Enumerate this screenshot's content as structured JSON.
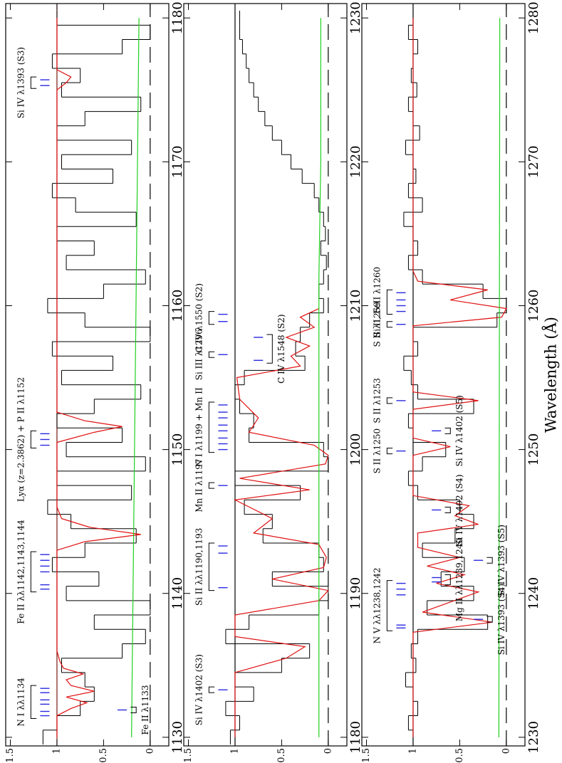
{
  "chart_data": [
    {
      "type": "line",
      "xlim": [
        1129.4,
        1181
      ],
      "xticks": [
        1130,
        1140,
        1150,
        1160,
        1170,
        1180
      ],
      "ylim": [
        -0.2,
        1.55
      ],
      "yticks": [
        0,
        0.5,
        1,
        1.5
      ],
      "reference_lines": [
        {
          "value": 1,
          "color": "#7a1a10"
        },
        {
          "value": 0,
          "color": "#000000",
          "dashed": true
        }
      ],
      "annotation_color": "#2a2ae0",
      "series": [
        {
          "color": "#000000",
          "step": true,
          "x": [
            1130,
            1131,
            1132,
            1133,
            1134,
            1135,
            1136,
            1137,
            1138,
            1139,
            1140,
            1141,
            1142,
            1143,
            1144,
            1145,
            1146,
            1147,
            1148,
            1149,
            1150,
            1151,
            1152,
            1153,
            1154,
            1155,
            1156,
            1157,
            1158,
            1159,
            1160,
            1161,
            1162,
            1163,
            1164,
            1165,
            1166,
            1167,
            1168,
            1169,
            1170,
            1171,
            1172,
            1173,
            1174,
            1175,
            1176,
            1177,
            1178,
            1179,
            1180
          ],
          "values": [
            1.15,
            1.0,
            0.75,
            0.6,
            0.7,
            0.95,
            0.3,
            0.05,
            0.6,
            0.0,
            0.9,
            0.55,
            1.05,
            0.7,
            0.15,
            0.85,
            1.1,
            0.2,
            1.0,
            0.05,
            0.9,
            0.3,
            1.0,
            0.6,
            0.1,
            0.95,
            0.4,
            1.05,
            0.0,
            0.7,
            1.1,
            0.5,
            0.05,
            0.9,
            0.6,
            1.0,
            0.15,
            0.8,
            1.05,
            0.4,
            0.95,
            0.2,
            1.0,
            0.7,
            0.1,
            0.95,
            0.75,
            1.05,
            0.3,
            0.0,
            1.0
          ]
        },
        {
          "color": "#e01010",
          "x": [
            1130,
            1131.5,
            1132,
            1132.4,
            1132.8,
            1133.2,
            1133.6,
            1134.0,
            1134.4,
            1134.8,
            1135.3,
            1136,
            1143,
            1143.6,
            1144.1,
            1144.6,
            1145.2,
            1146,
            1150.5,
            1151.2,
            1151.6,
            1152.0,
            1152.6,
            1175,
            1175.5,
            1175.9,
            1176.4,
            1180
          ],
          "values": [
            1,
            1,
            0.85,
            0.68,
            0.9,
            0.6,
            0.85,
            0.9,
            0.72,
            0.93,
            0.97,
            1,
            1,
            0.7,
            0.1,
            0.65,
            0.95,
            1,
            1,
            0.6,
            0.3,
            0.7,
            1,
            1,
            0.9,
            0.85,
            1,
            1
          ]
        },
        {
          "color": "#20d020",
          "x": [
            1130,
            1180
          ],
          "values": [
            0.2,
            0.12
          ]
        }
      ],
      "annotations": [
        {
          "label": "N I λλ1134",
          "ticks": [
            1131.5,
            1131.8,
            1132.3,
            1132.6,
            1133.1,
            1133.4
          ],
          "placement": "high"
        },
        {
          "label": "Fe II λ1133",
          "ticks": [
            1131.9
          ],
          "placement": "low"
        },
        {
          "label": "Fe II λλ1142,1143,1144",
          "ticks": [
            1140.3,
            1140.6,
            1141.5,
            1141.9,
            1142.3,
            1142.7
          ],
          "placement": "high"
        },
        {
          "label": "Lyα (z=2.3862) + P II λ1152",
          "ticks": [
            1150.3,
            1150.7,
            1151.1
          ],
          "placement": "high"
        },
        {
          "label": "Si IV λ1393 (S3)",
          "ticks": [
            1175.3,
            1175.7
          ],
          "placement": "high"
        }
      ]
    },
    {
      "type": "line",
      "xlim": [
        1179.4,
        1231
      ],
      "xticks": [
        1180,
        1190,
        1200,
        1210,
        1220,
        1230
      ],
      "ylim": [
        -0.2,
        1.55
      ],
      "yticks": [
        0,
        0.5,
        1,
        1.5
      ],
      "reference_lines": [
        {
          "value": 1,
          "color": "#000000"
        },
        {
          "value": 0,
          "color": "#000000",
          "dashed": true
        }
      ],
      "annotation_color": "#2a2ae0",
      "series": [
        {
          "color": "#000000",
          "step": true,
          "x": [
            1180,
            1181,
            1182,
            1183,
            1184,
            1185,
            1186,
            1187,
            1188,
            1189,
            1190,
            1191,
            1192,
            1193,
            1194,
            1195,
            1196,
            1197,
            1198,
            1199,
            1200,
            1201,
            1202,
            1203,
            1204,
            1205,
            1206,
            1207,
            1208,
            1209,
            1210,
            1211,
            1212,
            1213,
            1214,
            1215,
            1216,
            1217,
            1218,
            1219,
            1220,
            1221,
            1222,
            1223,
            1224,
            1225,
            1226,
            1227,
            1228,
            1229,
            1230
          ],
          "values": [
            1.05,
            0.95,
            1.1,
            0.8,
            1.0,
            0.5,
            0.2,
            1.1,
            0.85,
            0.1,
            0.0,
            0.6,
            0.05,
            0.1,
            0.7,
            0.6,
            0.9,
            0.3,
            1.0,
            0.0,
            0.05,
            0.85,
            0.8,
            0.95,
            1.0,
            0.9,
            0.25,
            0.35,
            0.3,
            0.2,
            0.05,
            0.1,
            0.05,
            0.02,
            0.08,
            0.03,
            0.05,
            0.1,
            0.15,
            0.28,
            0.4,
            0.5,
            0.6,
            0.68,
            0.75,
            0.8,
            0.85,
            0.88,
            0.92,
            0.95,
            0.95
          ]
        },
        {
          "color": "#e01010",
          "x": [
            1180,
            1184.5,
            1185.5,
            1186.3,
            1187,
            1188.5,
            1189.5,
            1190.2,
            1191,
            1191.8,
            1192.5,
            1193.4,
            1194.2,
            1195.2,
            1196.5,
            1197.2,
            1198,
            1199.0,
            1199.6,
            1200.3,
            1201.2,
            1202.2,
            1203.5,
            1205,
            1205.8,
            1206.5,
            1207.2,
            1207.8,
            1208.5,
            1209.2,
            1209.8
          ],
          "values": [
            1,
            1,
            0.45,
            0.25,
            1,
            1,
            0.1,
            0.0,
            0.6,
            0.05,
            0.02,
            0.1,
            0.8,
            0.6,
            1,
            0.2,
            0.95,
            0.03,
            0.0,
            0.15,
            0.85,
            0.75,
            0.95,
            0.98,
            0.3,
            0.4,
            0.2,
            0.45,
            0.15,
            0.3,
            0.1
          ]
        },
        {
          "color": "#20d020",
          "x": [
            1180,
            1205,
            1212,
            1220,
            1230
          ],
          "values": [
            0.1,
            0.1,
            0.1,
            0.08,
            0.08
          ]
        }
      ],
      "annotations": [
        {
          "label": "Si IV λ1402 (S3)",
          "ticks": [
            1183.3
          ],
          "placement": "high"
        },
        {
          "label": "Si II λλ1190,1193",
          "ticks": [
            1190.4,
            1192.8,
            1193.3
          ],
          "placement": "high"
        },
        {
          "label": "Mn II λ1197",
          "ticks": [
            1197.5
          ],
          "placement": "high"
        },
        {
          "label": "N I λ1199 + Mn II",
          "ticks": [
            1200.0,
            1200.4,
            1200.8,
            1201.3,
            1201.7,
            1202.2,
            1202.6,
            1203.1
          ],
          "placement": "high"
        },
        {
          "label": "C IV λ1548 (S2)",
          "ticks": [
            1206.2,
            1207.8
          ],
          "placement": "mid"
        },
        {
          "label": "Si III λ1296",
          "ticks": [
            1206.6
          ],
          "placement": "high"
        },
        {
          "label": "C IV λ1550 (S2)",
          "ticks": [
            1208.9,
            1209.4
          ],
          "placement": "high"
        }
      ]
    },
    {
      "type": "line",
      "xlim": [
        1229.4,
        1281
      ],
      "xticks": [
        1230,
        1240,
        1250,
        1260,
        1270,
        1280
      ],
      "ylim": [
        -0.2,
        1.55
      ],
      "yticks": [
        0,
        0.5,
        1,
        1.5
      ],
      "xlabel": "Wavelength (Å)",
      "reference_lines": [
        {
          "value": 1,
          "color": "#000000"
        },
        {
          "value": 0,
          "color": "#000000",
          "dashed": true
        }
      ],
      "annotation_color": "#2a2ae0",
      "series": [
        {
          "color": "#000000",
          "step": true,
          "x": [
            1230,
            1231,
            1232,
            1233,
            1234,
            1235,
            1236,
            1237,
            1238,
            1239,
            1240,
            1241,
            1242,
            1243,
            1244,
            1245,
            1246,
            1247,
            1248,
            1249,
            1250,
            1251,
            1252,
            1253,
            1254,
            1255,
            1256,
            1257,
            1258,
            1259,
            1260,
            1261,
            1262,
            1263,
            1264,
            1265,
            1266,
            1267,
            1268,
            1269,
            1270,
            1271,
            1272,
            1273,
            1274,
            1275,
            1276,
            1277,
            1278,
            1279,
            1280
          ],
          "values": [
            1.0,
            1.05,
            0.95,
            1.0,
            1.08,
            0.97,
            1.02,
            0.95,
            0.2,
            0.85,
            0.35,
            0.7,
            0.45,
            0.9,
            0.55,
            0.35,
            0.5,
            0.95,
            1.05,
            0.9,
            0.65,
            1.0,
            1.05,
            0.35,
            0.95,
            1.02,
            1.1,
            0.95,
            1.0,
            0.1,
            0.0,
            0.25,
            0.9,
            1.05,
            0.95,
            1.0,
            1.1,
            0.9,
            1.05,
            0.97,
            1.0,
            1.08,
            0.93,
            1.0,
            1.05,
            0.96,
            1.02,
            1.0,
            0.95,
            1.05,
            1.0
          ]
        },
        {
          "color": "#e01010",
          "x": [
            1230,
            1237.3,
            1238.0,
            1238.7,
            1239.4,
            1240.1,
            1240.7,
            1241.3,
            1241.9,
            1242.5,
            1243.2,
            1244.2,
            1244.8,
            1245.4,
            1246.1,
            1246.8,
            1249.6,
            1250.2,
            1250.8,
            1252.8,
            1253.4,
            1254,
            1258.6,
            1259.2,
            1259.8,
            1260.4,
            1261.1,
            1261.7,
            1262.4,
            1280
          ],
          "values": [
            1,
            1,
            0.15,
            0.9,
            0.6,
            0.3,
            0.75,
            0.45,
            0.85,
            0.5,
            0.95,
            0.95,
            0.3,
            0.55,
            0.4,
            1,
            1,
            0.6,
            1,
            1,
            0.3,
            1,
            1,
            0.05,
            0.0,
            0.6,
            0.2,
            0.95,
            1,
            1
          ]
        },
        {
          "color": "#20d020",
          "x": [
            1230,
            1280
          ],
          "values": [
            0.08,
            0.07
          ]
        }
      ],
      "annotations": [
        {
          "label": "N V λλ1238,1242",
          "ticks": [
            1237.6,
            1237.8,
            1239.9,
            1240.3,
            1240.7
          ],
          "placement": "high"
        },
        {
          "label": "Si IV λ1393 (S4)",
          "ticks": [
            1238.2
          ],
          "placement": "low"
        },
        {
          "label": "Mg II λλ1239,1240",
          "ticks": [
            1240.8,
            1241.1
          ],
          "placement": "mid"
        },
        {
          "label": "Si IV λ1393 (S5)",
          "ticks": [
            1242.3
          ],
          "placement": "low"
        },
        {
          "label": "Si IV λ1402 (S4)",
          "ticks": [
            1245.8
          ],
          "placement": "mid"
        },
        {
          "label": "S II λ1250",
          "ticks": [
            1249.9
          ],
          "placement": "high"
        },
        {
          "label": "Si IV λ1402 (S5)",
          "ticks": [
            1251.3
          ],
          "placement": "mid"
        },
        {
          "label": "S II λ1253",
          "ticks": [
            1253.4
          ],
          "placement": "high"
        },
        {
          "label": "S II λ1259",
          "ticks": [
            1258.7
          ],
          "placement": "high"
        },
        {
          "label": "Si II, FeII λ1260",
          "ticks": [
            1259.6,
            1260.0,
            1260.4,
            1260.9
          ],
          "placement": "high"
        }
      ]
    }
  ]
}
